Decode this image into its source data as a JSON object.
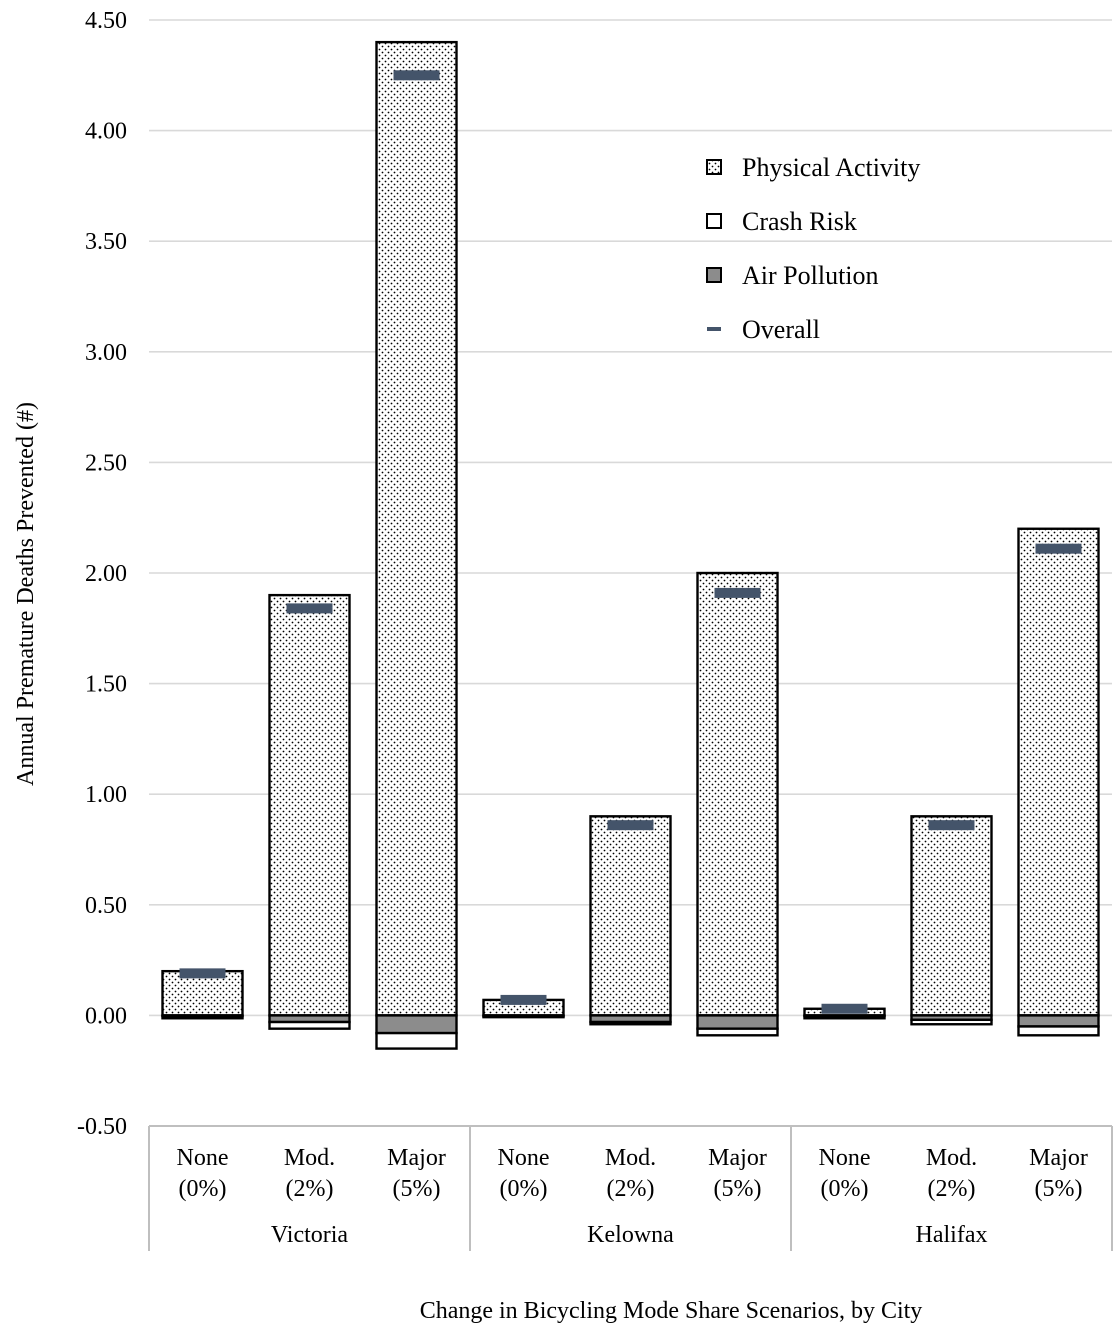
{
  "chart_data": {
    "type": "bar",
    "stacked": true,
    "ylabel": "Annual Premature Deaths Prevented (#)",
    "xlabel": "Change in Bicycling Mode Share Scenarios, by City",
    "ylim": [
      -0.5,
      4.5
    ],
    "yticks": [
      -0.5,
      0.0,
      0.5,
      1.0,
      1.5,
      2.0,
      2.5,
      3.0,
      3.5,
      4.0,
      4.5
    ],
    "ytick_labels": [
      "-0.50",
      "0.00",
      "0.50",
      "1.00",
      "1.50",
      "2.00",
      "2.50",
      "3.00",
      "3.50",
      "4.00",
      "4.50"
    ],
    "grid": true,
    "legend_position": "upper-right",
    "groups": [
      {
        "name": "Victoria",
        "scenarios": [
          {
            "line1": "None",
            "line2": "(0%)"
          },
          {
            "line1": "Mod.",
            "line2": "(2%)"
          },
          {
            "line1": "Major",
            "line2": "(5%)"
          }
        ]
      },
      {
        "name": "Kelowna",
        "scenarios": [
          {
            "line1": "None",
            "line2": "(0%)"
          },
          {
            "line1": "Mod.",
            "line2": "(2%)"
          },
          {
            "line1": "Major",
            "line2": "(5%)"
          }
        ]
      },
      {
        "name": "Halifax",
        "scenarios": [
          {
            "line1": "None",
            "line2": "(0%)"
          },
          {
            "line1": "Mod.",
            "line2": "(2%)"
          },
          {
            "line1": "Major",
            "line2": "(5%)"
          }
        ]
      }
    ],
    "series": [
      {
        "name": "Physical Activity",
        "kind": "bar",
        "pattern": "dots",
        "color": "#ffffff",
        "values": [
          0.2,
          1.9,
          4.4,
          0.07,
          0.9,
          2.0,
          0.03,
          0.9,
          2.2
        ]
      },
      {
        "name": "Crash Risk",
        "kind": "bar",
        "pattern": "none",
        "color": "#ffffff",
        "values": [
          -0.01,
          -0.03,
          -0.07,
          -0.005,
          -0.01,
          -0.03,
          -0.01,
          -0.02,
          -0.04
        ]
      },
      {
        "name": "Air Pollution",
        "kind": "bar",
        "pattern": "none",
        "color": "#8c8c8c",
        "values": [
          -0.003,
          -0.03,
          -0.08,
          -0.003,
          -0.03,
          -0.06,
          -0.003,
          -0.02,
          -0.05
        ]
      },
      {
        "name": "Overall",
        "kind": "marker",
        "color": "#44546a",
        "values": [
          0.19,
          1.84,
          4.25,
          0.07,
          0.86,
          1.91,
          0.03,
          0.86,
          2.11
        ]
      }
    ],
    "colors": {
      "grid": "#d9d9d9",
      "axis": "#bfbfbf",
      "bar_edge": "#000000",
      "dots": "#000000"
    }
  }
}
